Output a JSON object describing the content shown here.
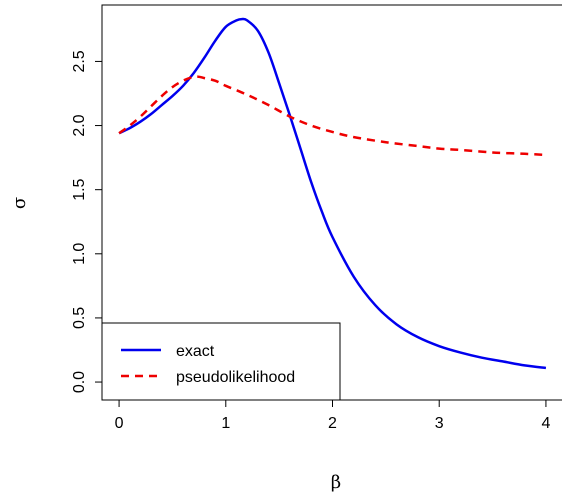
{
  "chart_data": {
    "type": "line",
    "title": "",
    "xlabel": "β",
    "ylabel": "σ",
    "xlim": [
      -0.16,
      4.16
    ],
    "ylim": [
      -0.14,
      2.94
    ],
    "x_ticks": [
      0,
      1,
      2,
      3,
      4
    ],
    "x_tick_labels": [
      "0",
      "1",
      "2",
      "3",
      "4"
    ],
    "y_ticks": [
      0.0,
      0.5,
      1.0,
      1.5,
      2.0,
      2.5
    ],
    "y_tick_labels": [
      "0.0",
      "0.5",
      "1.0",
      "1.5",
      "2.0",
      "2.5"
    ],
    "grid": false,
    "legend_position": "bottom-left",
    "series": [
      {
        "name": "exact",
        "color": "#0000ee",
        "dash": "solid",
        "x": [
          0.0,
          0.1,
          0.2,
          0.3,
          0.4,
          0.5,
          0.6,
          0.7,
          0.8,
          0.9,
          1.0,
          1.1,
          1.15,
          1.2,
          1.3,
          1.4,
          1.5,
          1.6,
          1.7,
          1.8,
          1.9,
          2.0,
          2.2,
          2.4,
          2.6,
          2.8,
          3.0,
          3.2,
          3.4,
          3.6,
          3.8,
          4.0
        ],
        "y": [
          1.94,
          1.98,
          2.03,
          2.09,
          2.16,
          2.23,
          2.31,
          2.41,
          2.53,
          2.66,
          2.77,
          2.82,
          2.83,
          2.82,
          2.74,
          2.57,
          2.33,
          2.08,
          1.82,
          1.56,
          1.33,
          1.13,
          0.82,
          0.6,
          0.45,
          0.35,
          0.28,
          0.23,
          0.19,
          0.16,
          0.13,
          0.11
        ]
      },
      {
        "name": "pseudolikelihood",
        "color": "#ee0000",
        "dash": "dashed",
        "x": [
          0.0,
          0.1,
          0.2,
          0.3,
          0.4,
          0.5,
          0.6,
          0.7,
          0.75,
          0.8,
          0.9,
          1.0,
          1.2,
          1.4,
          1.6,
          1.8,
          2.0,
          2.2,
          2.5,
          2.8,
          3.0,
          3.2,
          3.5,
          3.8,
          4.0
        ],
        "y": [
          1.94,
          2.0,
          2.07,
          2.15,
          2.23,
          2.3,
          2.35,
          2.38,
          2.38,
          2.37,
          2.35,
          2.31,
          2.24,
          2.16,
          2.07,
          2.0,
          1.95,
          1.91,
          1.87,
          1.84,
          1.82,
          1.81,
          1.79,
          1.78,
          1.77
        ]
      }
    ]
  }
}
